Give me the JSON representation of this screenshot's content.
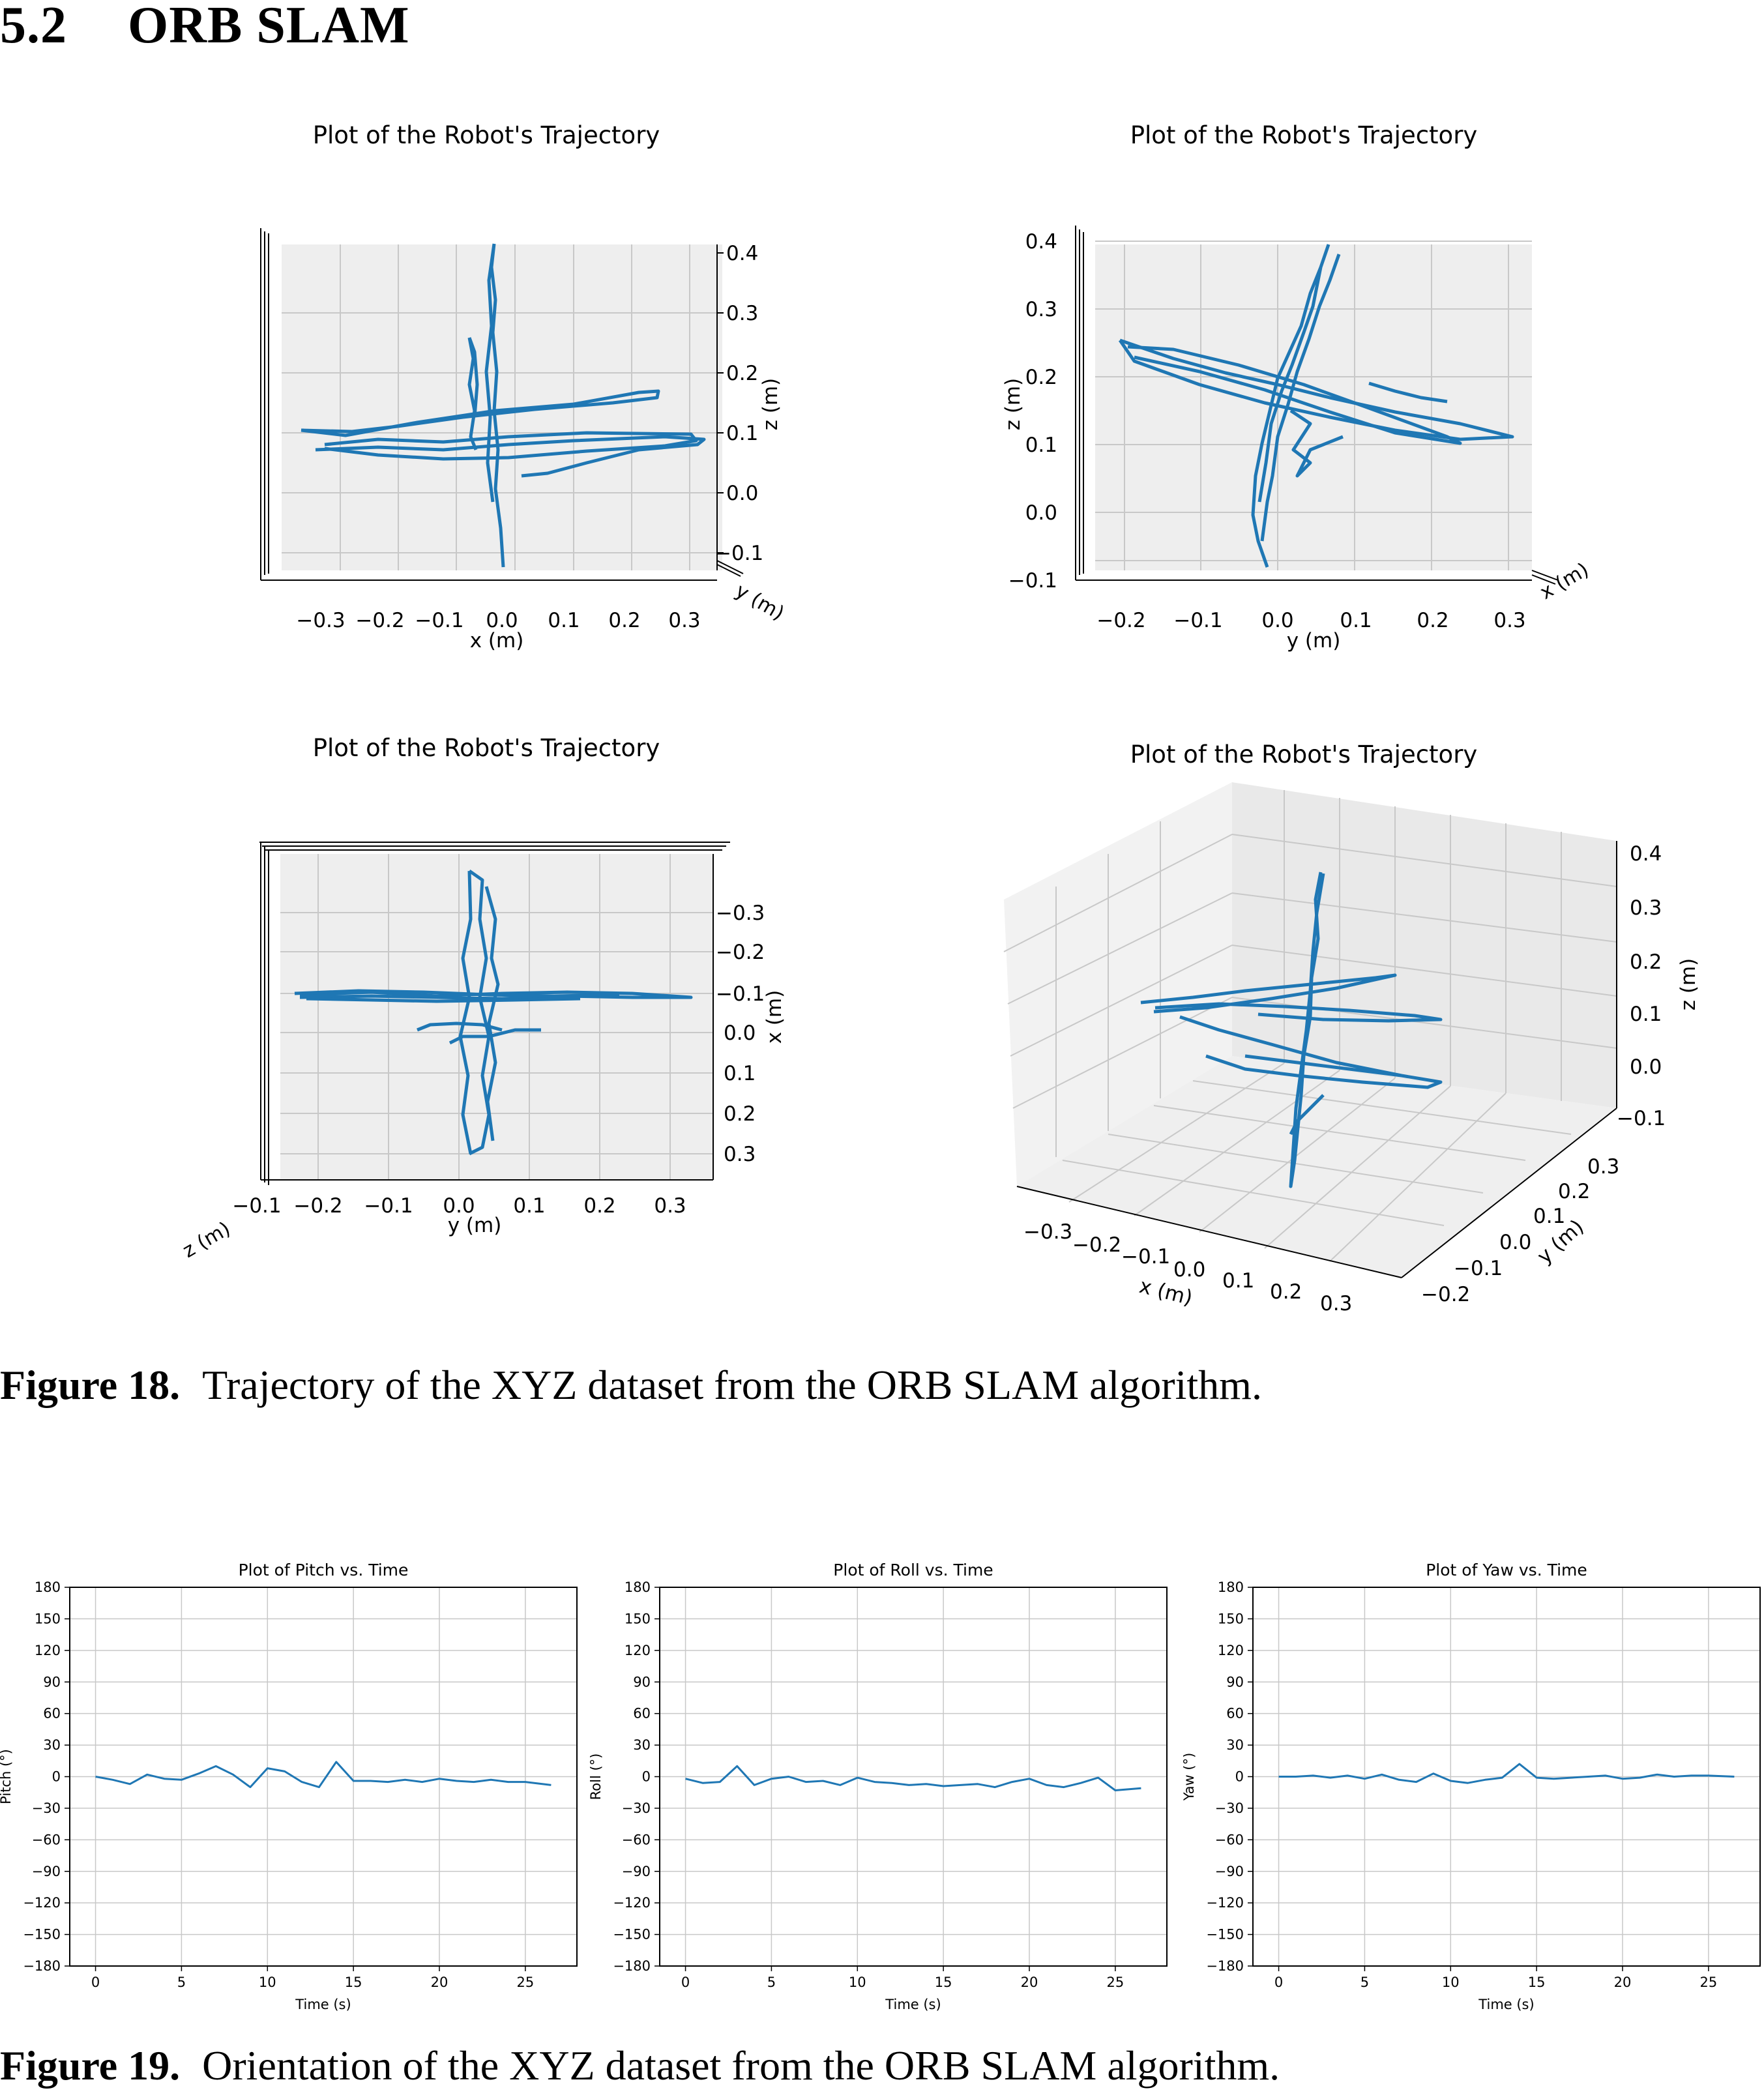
{
  "section": {
    "number": "5.2",
    "title": "ORB SLAM"
  },
  "figure18": {
    "label": "Figure 18.",
    "caption": "Trajectory of the XYZ dataset from the ORB SLAM algorithm.",
    "panels": [
      {
        "title": "Plot of the Robot's Trajectory",
        "view": "front (x–z)",
        "xlabel": "x (m)",
        "zlabel": "z (m)",
        "depth_label": "y (m)",
        "x_ticks": [
          "−0.3",
          "−0.2",
          "−0.1",
          "0.0",
          "0.1",
          "0.2",
          "0.3"
        ],
        "z_ticks": [
          "0.4",
          "0.3",
          "0.2",
          "0.1",
          "0.0",
          "−0.1"
        ]
      },
      {
        "title": "Plot of the Robot's Trajectory",
        "view": "side (y–z)",
        "xlabel": "y (m)",
        "zlabel": "z (m)",
        "depth_label": "x (m)",
        "x_ticks": [
          "−0.2",
          "−0.1",
          "0.0",
          "0.1",
          "0.2",
          "0.3"
        ],
        "z_ticks": [
          "0.4",
          "0.3",
          "0.2",
          "0.1",
          "0.0",
          "−0.1"
        ]
      },
      {
        "title": "Plot of the Robot's Trajectory",
        "view": "top (y–x)",
        "xlabel": "y (m)",
        "zlabel": "x (m)",
        "depth_label": "z (m)",
        "x_ticks": [
          "−0.1",
          "−0.2",
          "−0.1",
          "0.0",
          "0.1",
          "0.2",
          "0.3"
        ],
        "z_ticks": [
          "−0.3",
          "−0.2",
          "−0.1",
          "0.0",
          "0.1",
          "0.2",
          "0.3"
        ]
      },
      {
        "title": "Plot of the Robot's Trajectory",
        "view": "perspective 3D",
        "xlabel": "x (m)",
        "ylabel": "y (m)",
        "zlabel": "z (m)",
        "x_ticks": [
          "−0.3",
          "−0.2",
          "−0.1",
          "0.0",
          "0.1",
          "0.2",
          "0.3"
        ],
        "y_ticks": [
          "0.3",
          "0.2",
          "0.1",
          "0.0",
          "−0.1",
          "−0.2"
        ],
        "z_ticks": [
          "0.4",
          "0.3",
          "0.2",
          "0.1",
          "0.0",
          "−0.1"
        ]
      }
    ]
  },
  "figure19": {
    "label": "Figure 19.",
    "caption": "Orientation of the XYZ dataset from the ORB SLAM algorithm."
  },
  "chart_data": [
    {
      "type": "line",
      "title": "Plot of Pitch vs. Time",
      "xlabel": "Time (s)",
      "ylabel": "Pitch (°)",
      "xlim": [
        -1.5,
        28
      ],
      "ylim": [
        -180,
        180
      ],
      "grid": true,
      "x_ticks": [
        0,
        5,
        10,
        15,
        20,
        25
      ],
      "y_ticks": [
        180,
        150,
        120,
        90,
        60,
        30,
        0,
        -30,
        -60,
        -90,
        -120,
        -150,
        -180
      ],
      "x": [
        0,
        1,
        2,
        3,
        4,
        5,
        6,
        7,
        8,
        9,
        10,
        11,
        12,
        13,
        14,
        15,
        16,
        17,
        18,
        19,
        20,
        21,
        22,
        23,
        24,
        25,
        26.5
      ],
      "values": [
        0,
        -3,
        -7,
        2,
        -2,
        -3,
        3,
        10,
        2,
        -10,
        8,
        5,
        -5,
        -10,
        14,
        -4,
        -4,
        -5,
        -3,
        -5,
        -2,
        -4,
        -5,
        -3,
        -5,
        -5,
        -8
      ]
    },
    {
      "type": "line",
      "title": "Plot of Roll vs. Time",
      "xlabel": "Time (s)",
      "ylabel": "Roll (°)",
      "xlim": [
        -1.5,
        28
      ],
      "ylim": [
        -180,
        180
      ],
      "grid": true,
      "x_ticks": [
        0,
        5,
        10,
        15,
        20,
        25
      ],
      "y_ticks": [
        180,
        150,
        120,
        90,
        60,
        30,
        0,
        -30,
        -60,
        -90,
        -120,
        -150,
        -180
      ],
      "x": [
        0,
        1,
        2,
        3,
        4,
        5,
        6,
        7,
        8,
        9,
        10,
        11,
        12,
        13,
        14,
        15,
        16,
        17,
        18,
        19,
        20,
        21,
        22,
        23,
        24,
        25,
        26.5
      ],
      "values": [
        -2,
        -6,
        -5,
        10,
        -8,
        -2,
        0,
        -5,
        -4,
        -8,
        -1,
        -5,
        -6,
        -8,
        -7,
        -9,
        -8,
        -7,
        -10,
        -5,
        -2,
        -8,
        -10,
        -6,
        -1,
        -13,
        -11
      ]
    },
    {
      "type": "line",
      "title": "Plot of Yaw vs. Time",
      "xlabel": "Time (s)",
      "ylabel": "Yaw (°)",
      "xlim": [
        -1.5,
        28
      ],
      "ylim": [
        -180,
        180
      ],
      "grid": true,
      "x_ticks": [
        0,
        5,
        10,
        15,
        20,
        25
      ],
      "y_ticks": [
        180,
        150,
        120,
        90,
        60,
        30,
        0,
        -30,
        -60,
        -90,
        -120,
        -150,
        -180
      ],
      "x": [
        0,
        1,
        2,
        3,
        4,
        5,
        6,
        7,
        8,
        9,
        10,
        11,
        12,
        13,
        14,
        15,
        16,
        17,
        18,
        19,
        20,
        21,
        22,
        23,
        24,
        25,
        26.5
      ],
      "values": [
        0,
        0,
        1,
        -1,
        1,
        -2,
        2,
        -3,
        -5,
        3,
        -4,
        -6,
        -3,
        -1,
        12,
        -1,
        -2,
        -1,
        0,
        1,
        -2,
        -1,
        2,
        0,
        1,
        1,
        0
      ]
    }
  ]
}
